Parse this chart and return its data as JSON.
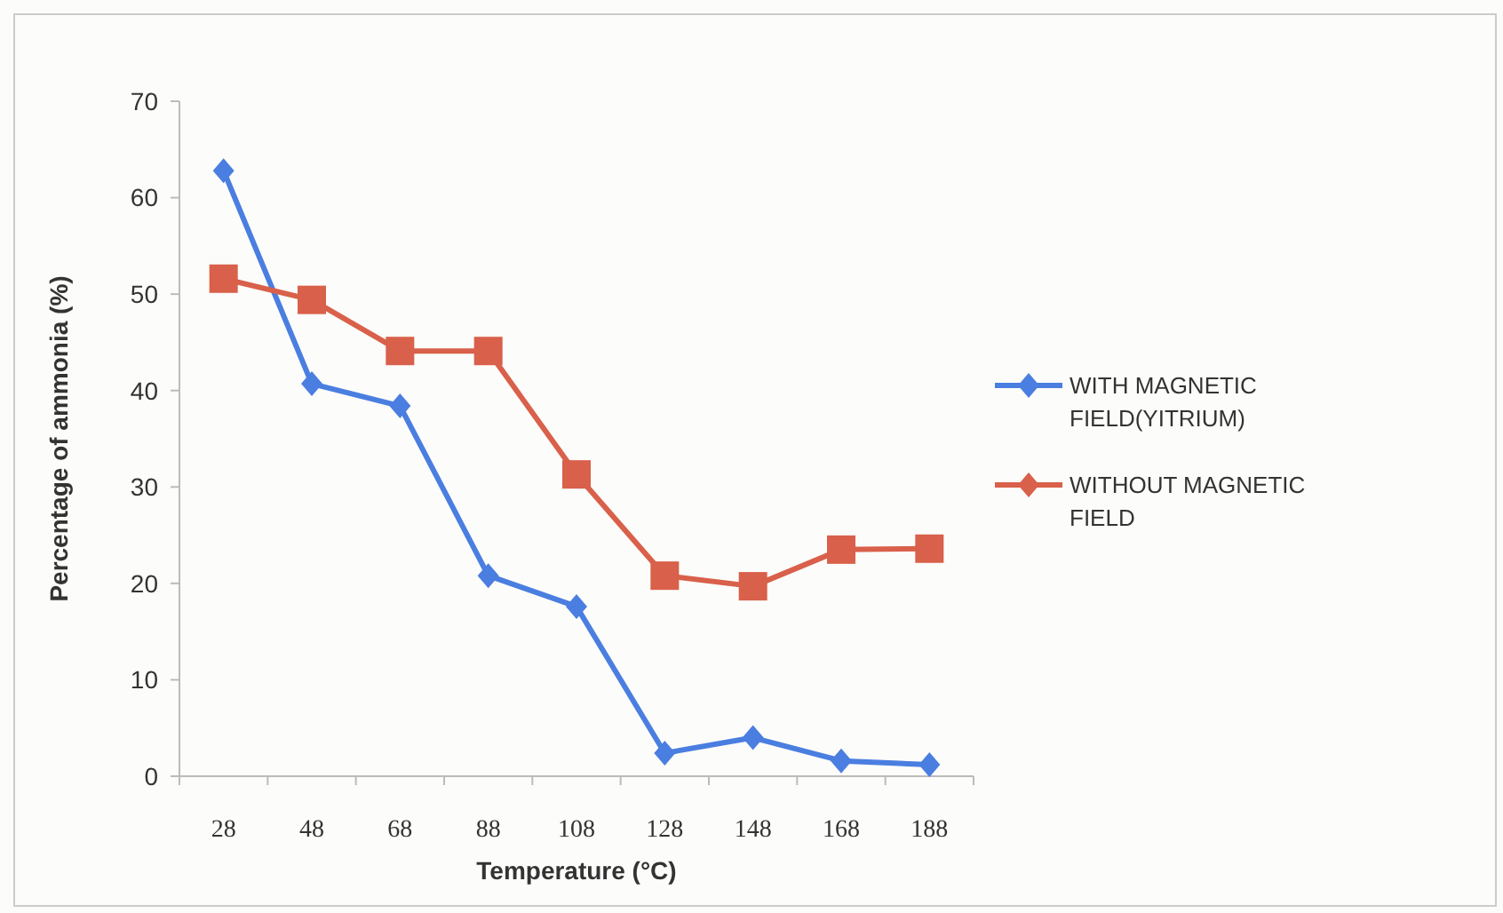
{
  "chart_data": {
    "type": "line",
    "xlabel": "Temperature (°C)",
    "ylabel": "Percentage of ammonia (%)",
    "categories": [
      "28",
      "48",
      "68",
      "88",
      "108",
      "128",
      "148",
      "168",
      "188"
    ],
    "series": [
      {
        "name": "WITH MAGNETIC FIELD(YITRIUM)",
        "color": "#4a7ee0",
        "marker": "diamond",
        "values": [
          62.8,
          40.7,
          38.4,
          20.8,
          17.6,
          2.4,
          4.0,
          1.6,
          1.2
        ]
      },
      {
        "name": "WITHOUT MAGNETIC FIELD",
        "color": "#d9604a",
        "marker": "square",
        "values": [
          51.6,
          49.4,
          44.1,
          44.1,
          31.3,
          20.8,
          19.7,
          23.5,
          23.6
        ]
      }
    ],
    "ylim": [
      0,
      70
    ],
    "yticks": [
      0,
      10,
      20,
      30,
      40,
      50,
      60,
      70
    ],
    "grid": false,
    "legend": "right"
  }
}
